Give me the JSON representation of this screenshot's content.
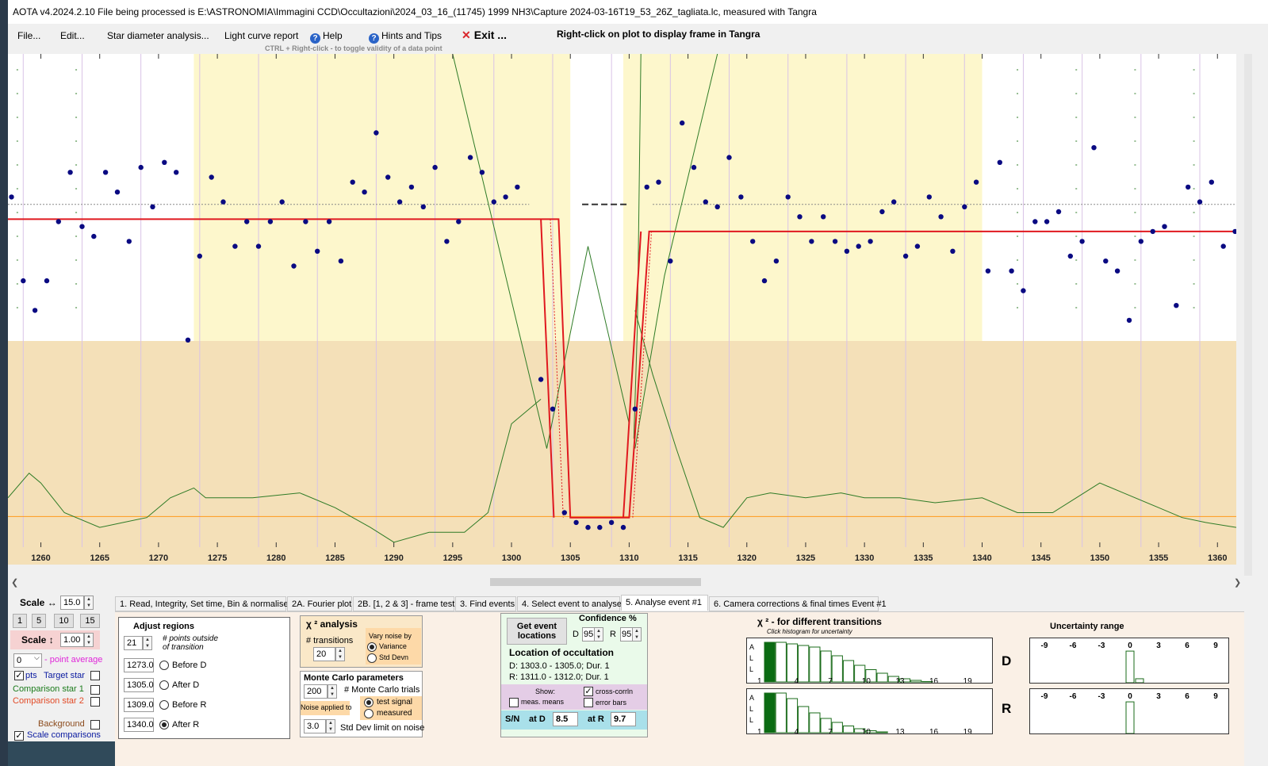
{
  "title": "AOTA v4.2024.2.10    File being processed is E:\\ASTRONOMIA\\Immagini CCD\\Occultazioni\\2024_03_16_(11745) 1999 NH3\\Capture 2024-03-16T19_53_26Z_tagliata.lc, measured with Tangra",
  "menu": {
    "file": "File...",
    "edit": "Edit...",
    "star_diam": "Star diameter analysis...",
    "lc_report": "Light curve report",
    "help": "Help",
    "hints": "Hints and Tips",
    "exit": "Exit ...",
    "hint_ctrl": "CTRL + Right-click  -  to toggle validity of a data point",
    "right_click": "Right-click on plot to display frame in Tangra"
  },
  "plot": {
    "x_ticks": [
      "1260",
      "1265",
      "1270",
      "1275",
      "1280",
      "1285",
      "1290",
      "1295",
      "1300",
      "1305",
      "1310",
      "1315",
      "1320",
      "1325",
      "1330",
      "1335",
      "1340",
      "1345",
      "1350",
      "1355",
      "1360"
    ],
    "x_range": [
      1257.2,
      1361.6
    ],
    "y_range_fraction": [
      0,
      1
    ],
    "colors": {
      "selected_region": "#fdf7cc",
      "lower_region": "#f4e0b8",
      "points": "#0a0a82",
      "fit": "#e0191f",
      "chi2": "#2e7b26",
      "baseline": "#ff9a1a"
    },
    "points": [
      [
        1257.5,
        0.71
      ],
      [
        1258.5,
        0.54
      ],
      [
        1259.5,
        0.48
      ],
      [
        1260.5,
        0.54
      ],
      [
        1261.5,
        0.66
      ],
      [
        1262.5,
        0.76
      ],
      [
        1263.5,
        0.65
      ],
      [
        1264.5,
        0.63
      ],
      [
        1265.5,
        0.76
      ],
      [
        1266.5,
        0.72
      ],
      [
        1267.5,
        0.62
      ],
      [
        1268.5,
        0.77
      ],
      [
        1269.5,
        0.69
      ],
      [
        1270.5,
        0.78
      ],
      [
        1271.5,
        0.76
      ],
      [
        1272.5,
        0.42
      ],
      [
        1273.5,
        0.59
      ],
      [
        1274.5,
        0.75
      ],
      [
        1275.5,
        0.7
      ],
      [
        1276.5,
        0.61
      ],
      [
        1277.5,
        0.66
      ],
      [
        1278.5,
        0.61
      ],
      [
        1279.5,
        0.66
      ],
      [
        1280.5,
        0.7
      ],
      [
        1281.5,
        0.57
      ],
      [
        1282.5,
        0.66
      ],
      [
        1283.5,
        0.6
      ],
      [
        1284.5,
        0.66
      ],
      [
        1285.5,
        0.58
      ],
      [
        1286.5,
        0.74
      ],
      [
        1287.5,
        0.72
      ],
      [
        1288.5,
        0.84
      ],
      [
        1289.5,
        0.75
      ],
      [
        1290.5,
        0.7
      ],
      [
        1291.5,
        0.73
      ],
      [
        1292.5,
        0.69
      ],
      [
        1293.5,
        0.77
      ],
      [
        1294.5,
        0.62
      ],
      [
        1295.5,
        0.66
      ],
      [
        1296.5,
        0.79
      ],
      [
        1297.5,
        0.76
      ],
      [
        1298.5,
        0.7
      ],
      [
        1299.5,
        0.71
      ],
      [
        1300.5,
        0.73
      ],
      [
        1302.5,
        0.34
      ],
      [
        1303.5,
        0.28
      ],
      [
        1304.5,
        0.07
      ],
      [
        1305.5,
        0.05
      ],
      [
        1306.5,
        0.04
      ],
      [
        1307.5,
        0.04
      ],
      [
        1308.5,
        0.05
      ],
      [
        1309.5,
        0.04
      ],
      [
        1310.5,
        0.28
      ],
      [
        1311.5,
        0.73
      ],
      [
        1312.5,
        0.74
      ],
      [
        1313.5,
        0.58
      ],
      [
        1314.5,
        0.86
      ],
      [
        1315.5,
        0.77
      ],
      [
        1316.5,
        0.7
      ],
      [
        1317.5,
        0.69
      ],
      [
        1318.5,
        0.79
      ],
      [
        1319.5,
        0.71
      ],
      [
        1320.5,
        0.62
      ],
      [
        1321.5,
        0.54
      ],
      [
        1322.5,
        0.58
      ],
      [
        1323.5,
        0.71
      ],
      [
        1324.5,
        0.67
      ],
      [
        1325.5,
        0.62
      ],
      [
        1326.5,
        0.67
      ],
      [
        1327.5,
        0.62
      ],
      [
        1328.5,
        0.6
      ],
      [
        1329.5,
        0.61
      ],
      [
        1330.5,
        0.62
      ],
      [
        1331.5,
        0.68
      ],
      [
        1332.5,
        0.7
      ],
      [
        1333.5,
        0.59
      ],
      [
        1334.5,
        0.61
      ],
      [
        1335.5,
        0.71
      ],
      [
        1336.5,
        0.67
      ],
      [
        1337.5,
        0.6
      ],
      [
        1338.5,
        0.69
      ],
      [
        1339.5,
        0.74
      ],
      [
        1340.5,
        0.56
      ],
      [
        1341.5,
        0.78
      ],
      [
        1342.5,
        0.56
      ],
      [
        1343.5,
        0.52
      ],
      [
        1344.5,
        0.66
      ],
      [
        1345.5,
        0.66
      ],
      [
        1346.5,
        0.68
      ],
      [
        1347.5,
        0.59
      ],
      [
        1348.5,
        0.62
      ],
      [
        1349.5,
        0.81
      ],
      [
        1350.5,
        0.58
      ],
      [
        1351.5,
        0.56
      ],
      [
        1352.5,
        0.46
      ],
      [
        1353.5,
        0.62
      ],
      [
        1354.5,
        0.64
      ],
      [
        1355.5,
        0.65
      ],
      [
        1356.5,
        0.49
      ],
      [
        1357.5,
        0.73
      ],
      [
        1358.5,
        0.7
      ],
      [
        1359.5,
        0.74
      ],
      [
        1360.5,
        0.61
      ],
      [
        1361.5,
        0.64
      ]
    ]
  },
  "tabs": [
    "1. Read, Integrity, Set time, Bin & normalise",
    "2A. Fourier plot",
    "2B. [1, 2 & 3] - frame test",
    "3. Find events",
    "4. Select event to analyse",
    "5. Analyse event #1",
    "6. Camera corrections & final times Event #1"
  ],
  "active_tab": 5,
  "left": {
    "scale_h_label": "Scale ↔",
    "scale_h_value": "15.0",
    "scale_buttons": [
      "1",
      "5",
      "10",
      "15"
    ],
    "scale_v_label": "Scale ↕",
    "scale_v_value": "1.00",
    "point_avg_value": "0",
    "point_avg_label": "- point average",
    "pts_label": "pts",
    "target_label": "Target star",
    "comp1_label": "Comparison star 1",
    "comp2_label": "Comparison star 2",
    "background_label": "Background",
    "scale_comp_label": "Scale comparisons"
  },
  "adjust": {
    "title": "Adjust regions",
    "n_value": "21",
    "n_label": "# points outside of transition",
    "fields": [
      {
        "value": "1273.0",
        "label": "Before D"
      },
      {
        "value": "1305.0",
        "label": "After D"
      },
      {
        "value": "1309.0",
        "label": "Before R"
      },
      {
        "value": "1340.0",
        "label": "After R"
      }
    ],
    "selected": 3
  },
  "chi2": {
    "title": "χ ² analysis",
    "transitions_label": "# transitions",
    "transitions_value": "20",
    "vary_label": "Vary noise by",
    "variance": "Variance",
    "stddev": "Std Devn"
  },
  "mc": {
    "title": "Monte Carlo parameters",
    "trials_value": "200",
    "trials_label": "# Monte Carlo trials",
    "noise_label": "Noise applied to",
    "test_signal": "test signal",
    "measured": "measured",
    "limit_value": "3.0",
    "limit_label": "Std Dev limit on noise"
  },
  "loc": {
    "get_btn": "Get event locations",
    "confidence": "Confidence %",
    "d_label": "D",
    "d_value": "95",
    "r_label": "R",
    "r_value": "95",
    "title": "Location of occultation",
    "d_line": "D: 1303.0 - 1305.0; Dur. 1",
    "r_line": "R: 1311.0 - 1312.0; Dur. 1",
    "show": "Show:",
    "meas_means": "meas. means",
    "cross_corr": "cross-corrln",
    "error_bars": "error bars",
    "sn_label": "S/N",
    "at_d_label": "at D",
    "at_d": "8.5",
    "at_r_label": "at R",
    "at_r": "9.7"
  },
  "hist": {
    "title": "χ ² - for different transitions",
    "subtitle": "Click histogram for uncertainty",
    "all": [
      "A",
      "L",
      "L"
    ],
    "labels": [
      "1",
      "4",
      "7",
      "10",
      "13",
      "16",
      "19"
    ],
    "d_bars": [
      1.0,
      1.0,
      0.96,
      0.92,
      0.88,
      0.78,
      0.66,
      0.54,
      0.42,
      0.31,
      0.22,
      0.14,
      0.08,
      0.04,
      0.01
    ],
    "r_bars": [
      1.0,
      1.0,
      0.86,
      0.66,
      0.5,
      0.36,
      0.26,
      0.17,
      0.1,
      0.05,
      0.02
    ],
    "d_label": "D",
    "r_label": "R",
    "unc_title": "Uncertainty range",
    "unc_ticks": [
      "-9",
      "-6",
      "-3",
      "0",
      "3",
      "6",
      "9"
    ],
    "unc_d": [
      {
        "x": 0,
        "h": 0.95
      },
      {
        "x": 1,
        "h": 0.12
      }
    ],
    "unc_r": [
      {
        "x": 0,
        "h": 0.95
      }
    ]
  }
}
